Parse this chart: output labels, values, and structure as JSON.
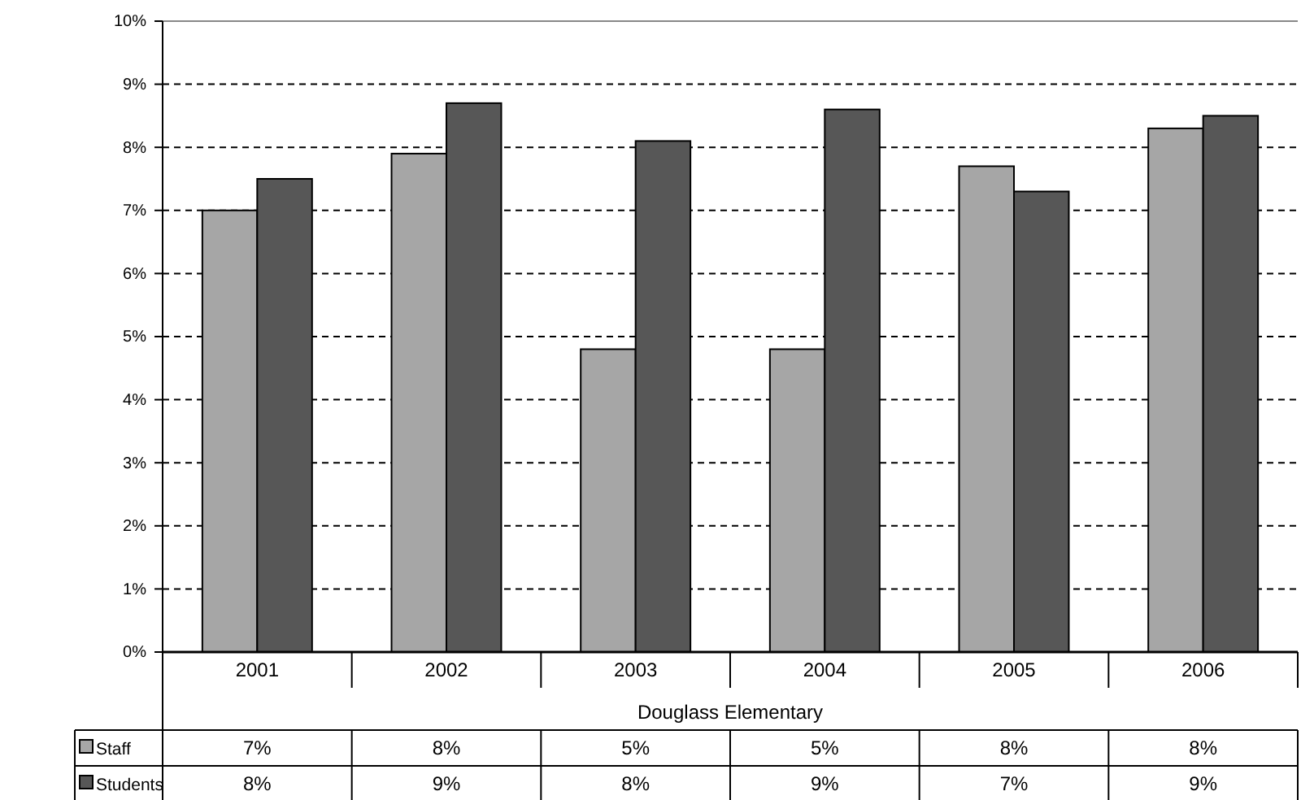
{
  "chart_data": {
    "type": "bar",
    "xlabel": "Douglass Elementary",
    "categories": [
      "2001",
      "2002",
      "2003",
      "2004",
      "2005",
      "2006"
    ],
    "series": [
      {
        "name": "Staff",
        "color": "#a6a6a6",
        "values": [
          7.0,
          7.9,
          4.8,
          4.8,
          7.7,
          8.3
        ],
        "value_labels": [
          "7%",
          "8%",
          "5%",
          "5%",
          "8%",
          "8%"
        ]
      },
      {
        "name": "Students",
        "color": "#575757",
        "values": [
          7.5,
          8.7,
          8.1,
          8.6,
          7.3,
          8.5
        ],
        "value_labels": [
          "8%",
          "9%",
          "8%",
          "9%",
          "7%",
          "9%"
        ]
      }
    ],
    "ylim": [
      0,
      10
    ],
    "yticks": [
      {
        "value": 0,
        "label": "0%"
      },
      {
        "value": 1,
        "label": "1%"
      },
      {
        "value": 2,
        "label": "2%"
      },
      {
        "value": 3,
        "label": "3%"
      },
      {
        "value": 4,
        "label": "4%"
      },
      {
        "value": 5,
        "label": "5%"
      },
      {
        "value": 6,
        "label": "6%"
      },
      {
        "value": 7,
        "label": "7%"
      },
      {
        "value": 8,
        "label": "8%"
      },
      {
        "value": 9,
        "label": "9%"
      },
      {
        "value": 10,
        "label": "10%"
      }
    ],
    "grid": "y",
    "legend": "bottom left"
  }
}
